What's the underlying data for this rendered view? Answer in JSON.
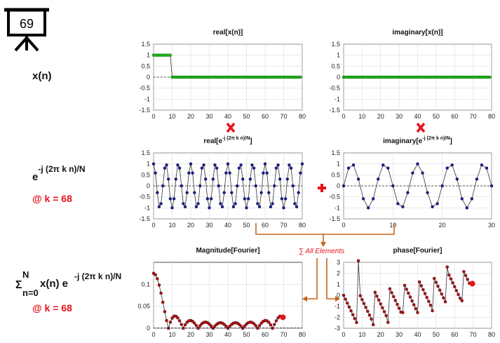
{
  "board": {
    "number": "69"
  },
  "labels": {
    "xn": "x(n)",
    "exp_base": "e",
    "exp_power": "-j (2π k n)/N",
    "k_value": "@ k = 68",
    "sum_sigma": "Σ",
    "sum_upper": "N",
    "sum_lower": "n=0",
    "sum_body": "x(n) e",
    "sum_power": "-j (2π k n)/N",
    "k_value_2": "@ k = 68",
    "all_elements": "∑ All Elements"
  },
  "colors": {
    "green": "#22c01a",
    "navy": "#1a1f8c",
    "red_marker": "#e8121a",
    "dark_red": "#8a1010",
    "arrow": "#c86418"
  },
  "chart_data": [
    {
      "id": "real-xn",
      "type": "scatter",
      "title": "real[x(n)]",
      "xlim": [
        0,
        80
      ],
      "ylim": [
        -1.5,
        1.5
      ],
      "xticks": [
        "0",
        "10",
        "20",
        "30",
        "40",
        "50",
        "60",
        "70",
        "80"
      ],
      "yticks": [
        "1.5",
        "1",
        "0.5",
        "0",
        "-0.5",
        "-1",
        "-1.5"
      ],
      "grid": true,
      "color": "#22c01a",
      "series": [
        {
          "x_start": 0,
          "x_end": 79,
          "values_rule": "1 for n<10 else 0"
        }
      ]
    },
    {
      "id": "imag-xn",
      "type": "scatter",
      "title": "imaginary[x(n)]",
      "xlim": [
        0,
        80
      ],
      "ylim": [
        -1.5,
        1.5
      ],
      "xticks": [
        "0",
        "10",
        "20",
        "30",
        "40",
        "50",
        "60",
        "70",
        "80"
      ],
      "yticks": [
        "1.5",
        "1",
        "0.5",
        "0",
        "-0.5",
        "-1",
        "-1.5"
      ],
      "grid": true,
      "color": "#22c01a",
      "series": [
        {
          "x_start": 0,
          "x_end": 79,
          "values_rule": "0 for all n"
        }
      ]
    },
    {
      "id": "real-exp",
      "type": "line",
      "title_main": "real[e",
      "title_sup": "-j (2π k n)/N",
      "title_end": "]",
      "xlim": [
        0,
        80
      ],
      "ylim": [
        -1.5,
        1.5
      ],
      "xticks": [
        "0",
        "10",
        "20",
        "30",
        "40",
        "50",
        "60",
        "70",
        "80"
      ],
      "yticks": [
        "1.5",
        "1",
        "0.5",
        "0",
        "-0.5",
        "-1",
        "-1.5"
      ],
      "grid": true,
      "color": "#1a1f8c",
      "k": 68,
      "N": 80,
      "part": "real"
    },
    {
      "id": "imag-exp",
      "type": "line",
      "title_main": "imaginary[e",
      "title_sup": "-j (2π k n)/N",
      "title_end": "]",
      "xlim": [
        0,
        30
      ],
      "ylim": [
        -1.5,
        1.5
      ],
      "xticks": [
        "0",
        "10",
        "20",
        "30"
      ],
      "yticks": [
        "1.5",
        "1",
        "0.5",
        "0",
        "-0.5",
        "-1",
        "-1.5"
      ],
      "grid": true,
      "color": "#1a1f8c",
      "k": 68,
      "N": 80,
      "part": "imag"
    },
    {
      "id": "magnitude",
      "type": "line",
      "title": "Magnitude[Fourier]",
      "xlim": [
        0,
        80
      ],
      "ylim": [
        0,
        0.15
      ],
      "xticks": [
        "0",
        "10",
        "20",
        "30",
        "40",
        "50",
        "60",
        "70",
        "80"
      ],
      "yticks": [
        "0.1",
        "0.05",
        "0"
      ],
      "grid": true,
      "color": "#8a1010",
      "current_k": 68,
      "current_value": 0.025
    },
    {
      "id": "phase",
      "type": "line",
      "title": "phase[Fourier]",
      "xlim": [
        0,
        80
      ],
      "ylim": [
        -3,
        3
      ],
      "xticks": [
        "0",
        "10",
        "20",
        "30",
        "40",
        "50",
        "60",
        "70",
        "80"
      ],
      "yticks": [
        "3",
        "2",
        "1",
        "0",
        "-1",
        "-2",
        "-3"
      ],
      "grid": true,
      "color": "#8a1010",
      "current_k": 68,
      "current_value": 1.06
    }
  ]
}
